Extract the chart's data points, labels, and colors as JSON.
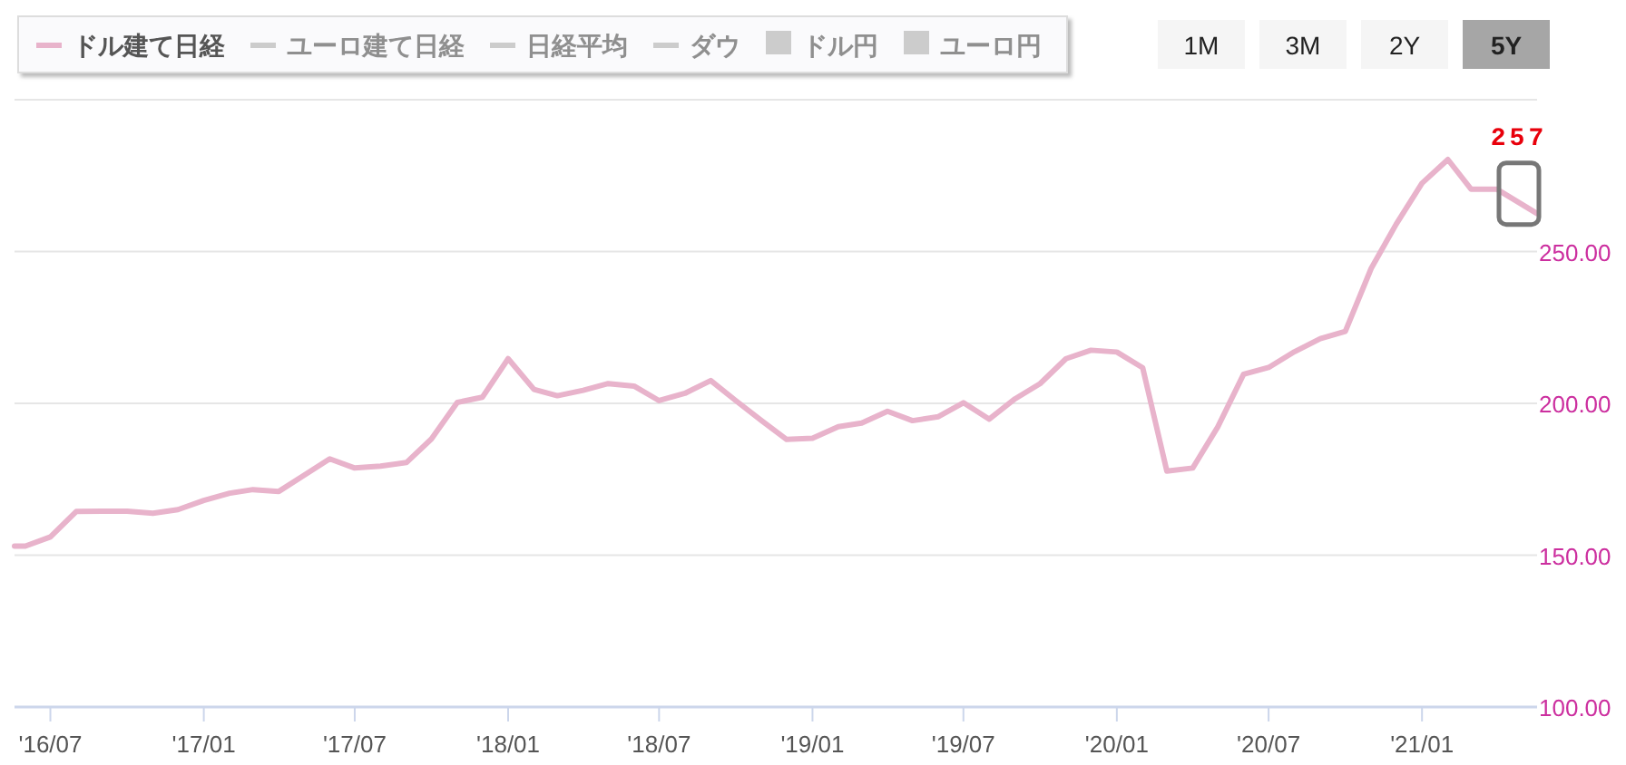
{
  "chart_data": {
    "type": "line",
    "x": [
      "2016-05-19",
      "2016-06",
      "2016-07",
      "2016-08",
      "2016-09",
      "2016-10",
      "2016-11",
      "2016-12",
      "2017-01",
      "2017-02",
      "2017-03",
      "2017-04",
      "2017-05",
      "2017-06",
      "2017-07",
      "2017-08",
      "2017-09",
      "2017-10",
      "2017-11",
      "2017-12",
      "2018-01",
      "2018-02",
      "2018-03",
      "2018-04",
      "2018-05",
      "2018-06",
      "2018-07",
      "2018-08",
      "2018-09",
      "2018-10",
      "2018-11",
      "2018-12",
      "2019-01",
      "2019-02",
      "2019-03",
      "2019-04",
      "2019-05",
      "2019-06",
      "2019-07",
      "2019-08",
      "2019-09",
      "2019-10",
      "2019-11",
      "2019-12",
      "2020-01",
      "2020-02",
      "2020-03",
      "2020-04",
      "2020-05",
      "2020-06",
      "2020-07",
      "2020-08",
      "2020-09",
      "2020-10",
      "2020-11",
      "2020-12",
      "2021-01",
      "2021-02",
      "2021-03",
      "2021-04",
      "2021-05-19"
    ],
    "series": [
      {
        "name": "ドル建て日経",
        "color": "#e8b3cb",
        "values": [
          153,
          153,
          156,
          164.4,
          164.5,
          164.5,
          163.8,
          165,
          168,
          170.4,
          171.6,
          171,
          176.3,
          181.7,
          178.7,
          179.3,
          180.5,
          188.3,
          200.3,
          202,
          214.7,
          204.6,
          202.5,
          204.3,
          206.5,
          205.7,
          200.9,
          203.3,
          207.5,
          200.9,
          194.3,
          188.1,
          188.5,
          192.3,
          193.5,
          197.4,
          194.3,
          195.6,
          200.2,
          194.8,
          201.5,
          206.5,
          214.7,
          217.5,
          216.9,
          211.7,
          177.7,
          178.7,
          192.2,
          209.6,
          211.8,
          217,
          221.3,
          223.7,
          244.4,
          259,
          272.5,
          280.3,
          270.5,
          270.5,
          262.5
        ]
      },
      {
        "name": "ユーロ建て日経",
        "color": "#cccccc",
        "values": [
          null,
          null,
          null,
          null,
          null,
          null,
          null,
          null,
          null,
          null,
          null,
          null,
          null,
          null,
          null,
          null,
          null,
          null,
          null,
          null,
          null,
          null,
          null,
          null,
          null,
          null,
          null,
          null,
          null,
          null,
          null,
          null,
          null,
          null,
          null,
          null,
          null,
          null,
          null,
          null,
          null,
          null,
          null,
          null,
          null,
          null,
          null,
          null,
          null,
          null,
          null,
          null,
          null,
          null,
          null,
          null,
          null,
          null,
          null,
          null,
          null
        ]
      },
      {
        "name": "日経平均",
        "color": "#cccccc",
        "values": [
          null,
          null,
          null,
          null,
          null,
          null,
          null,
          null,
          null,
          null,
          null,
          null,
          null,
          null,
          null,
          null,
          null,
          null,
          null,
          null,
          null,
          null,
          null,
          null,
          null,
          null,
          null,
          null,
          null,
          null,
          null,
          null,
          null,
          null,
          null,
          null,
          null,
          null,
          null,
          null,
          null,
          null,
          null,
          null,
          null,
          null,
          null,
          null,
          null,
          null,
          null,
          null,
          null,
          null,
          null,
          null,
          null,
          null,
          null,
          null,
          null
        ]
      },
      {
        "name": "ダウ",
        "color": "#cccccc",
        "values": [
          null,
          null,
          null,
          null,
          null,
          null,
          null,
          null,
          null,
          null,
          null,
          null,
          null,
          null,
          null,
          null,
          null,
          null,
          null,
          null,
          null,
          null,
          null,
          null,
          null,
          null,
          null,
          null,
          null,
          null,
          null,
          null,
          null,
          null,
          null,
          null,
          null,
          null,
          null,
          null,
          null,
          null,
          null,
          null,
          null,
          null,
          null,
          null,
          null,
          null,
          null,
          null,
          null,
          null,
          null,
          null,
          null,
          null,
          null,
          null,
          null
        ]
      },
      {
        "name": "ドル円",
        "color": "#cccccc",
        "type": "area",
        "values": [
          null,
          null,
          null,
          null,
          null,
          null,
          null,
          null,
          null,
          null,
          null,
          null,
          null,
          null,
          null,
          null,
          null,
          null,
          null,
          null,
          null,
          null,
          null,
          null,
          null,
          null,
          null,
          null,
          null,
          null,
          null,
          null,
          null,
          null,
          null,
          null,
          null,
          null,
          null,
          null,
          null,
          null,
          null,
          null,
          null,
          null,
          null,
          null,
          null,
          null,
          null,
          null,
          null,
          null,
          null,
          null,
          null,
          null,
          null,
          null,
          null
        ]
      },
      {
        "name": "ユーロ円",
        "color": "#cccccc",
        "type": "area",
        "values": [
          null,
          null,
          null,
          null,
          null,
          null,
          null,
          null,
          null,
          null,
          null,
          null,
          null,
          null,
          null,
          null,
          null,
          null,
          null,
          null,
          null,
          null,
          null,
          null,
          null,
          null,
          null,
          null,
          null,
          null,
          null,
          null,
          null,
          null,
          null,
          null,
          null,
          null,
          null,
          null,
          null,
          null,
          null,
          null,
          null,
          null,
          null,
          null,
          null,
          null,
          null,
          null,
          null,
          null,
          null,
          null,
          null,
          null,
          null,
          null,
          null
        ]
      }
    ],
    "xlim": [
      "2016-05-19",
      "2021-05-19"
    ],
    "xticks": [
      {
        "value": "2016-07",
        "label": "'16/07"
      },
      {
        "value": "2017-01",
        "label": "'17/01"
      },
      {
        "value": "2017-07",
        "label": "'17/07"
      },
      {
        "value": "2018-01",
        "label": "'18/01"
      },
      {
        "value": "2018-07",
        "label": "'18/07"
      },
      {
        "value": "2019-01",
        "label": "'19/01"
      },
      {
        "value": "2019-07",
        "label": "'19/07"
      },
      {
        "value": "2020-01",
        "label": "'20/01"
      },
      {
        "value": "2020-07",
        "label": "'20/07"
      },
      {
        "value": "2021-01",
        "label": "'21/01"
      }
    ],
    "ylim": [
      100,
      300
    ],
    "yticks": [
      {
        "value": 100,
        "label": "100.00"
      },
      {
        "value": 150,
        "label": "150.00"
      },
      {
        "value": 200,
        "label": "200.00"
      },
      {
        "value": 250,
        "label": "250.00"
      },
      {
        "value": 300,
        "label": null
      }
    ],
    "grid": "y",
    "legend": "top left",
    "marker": "none",
    "line_style": "solid",
    "annotations": [
      {
        "text": "257",
        "x": "2021-05-19",
        "y": 262.5
      },
      "1M",
      "3M",
      "2Y",
      "5Y"
    ]
  }
}
